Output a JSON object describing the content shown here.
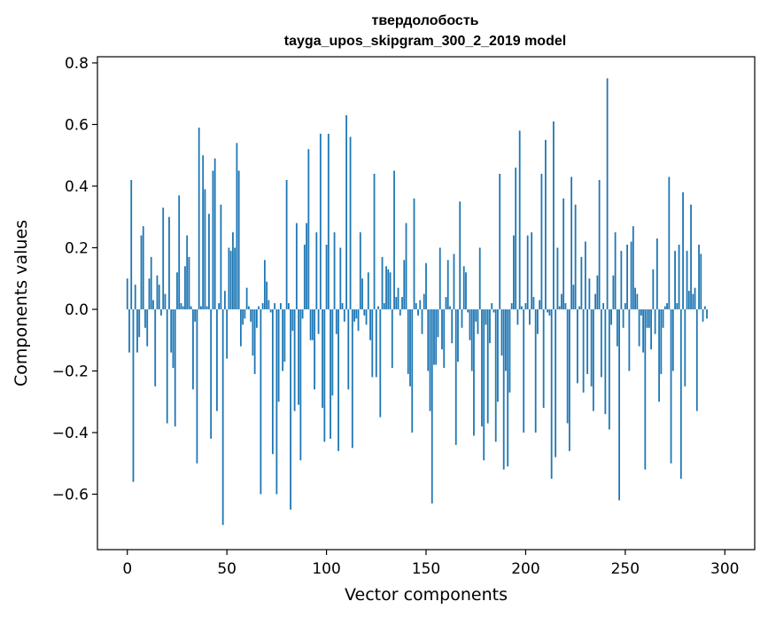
{
  "chart_data": {
    "type": "bar",
    "title_line1": "твердолобость",
    "title_line2": "tayga_upos_skipgram_300_2_2019 model",
    "xlabel": "Vector components",
    "ylabel": "Components values",
    "xlim": [
      -15,
      315
    ],
    "ylim": [
      -0.78,
      0.82
    ],
    "x_ticks": [
      0,
      50,
      100,
      150,
      200,
      250,
      300
    ],
    "x_tick_labels": [
      "0",
      "50",
      "100",
      "150",
      "200",
      "250",
      "300"
    ],
    "y_ticks": [
      -0.6,
      -0.4,
      -0.2,
      0.0,
      0.2,
      0.4,
      0.6,
      0.8
    ],
    "y_tick_labels": [
      "−0.6",
      "−0.4",
      "−0.2",
      "0.0",
      "0.2",
      "0.4",
      "0.6",
      "0.8"
    ],
    "bar_color": "#1f77b4",
    "values": [
      0.1,
      -0.14,
      0.42,
      -0.56,
      0.08,
      -0.14,
      -0.09,
      0.24,
      0.27,
      -0.06,
      -0.12,
      0.1,
      0.17,
      0.03,
      -0.25,
      0.11,
      0.08,
      -0.02,
      0.33,
      0.05,
      -0.37,
      0.3,
      -0.14,
      -0.19,
      -0.38,
      0.12,
      0.37,
      0.02,
      0.01,
      0.14,
      0.24,
      0.17,
      0.01,
      -0.26,
      -0.04,
      -0.5,
      0.59,
      0.01,
      0.5,
      0.39,
      0.01,
      0.31,
      -0.42,
      0.45,
      0.49,
      -0.33,
      0.02,
      0.34,
      -0.7,
      0.06,
      -0.16,
      0.2,
      0.19,
      0.25,
      0.2,
      0.54,
      0.45,
      -0.12,
      -0.05,
      -0.03,
      0.07,
      0.01,
      -0.04,
      -0.15,
      -0.21,
      -0.06,
      0.01,
      -0.6,
      0.02,
      0.16,
      0.09,
      0.03,
      -0.01,
      -0.47,
      0.02,
      -0.6,
      -0.3,
      0.02,
      -0.2,
      -0.17,
      0.42,
      0.02,
      -0.65,
      -0.07,
      -0.33,
      0.28,
      -0.31,
      -0.49,
      -0.03,
      0.21,
      0.28,
      0.52,
      -0.1,
      -0.1,
      -0.26,
      0.25,
      -0.08,
      0.57,
      -0.32,
      -0.43,
      0.21,
      0.57,
      -0.42,
      -0.28,
      0.25,
      -0.08,
      -0.46,
      0.2,
      0.02,
      -0.04,
      0.63,
      -0.26,
      0.56,
      -0.45,
      -0.04,
      -0.03,
      -0.07,
      0.25,
      0.1,
      -0.02,
      -0.05,
      0.12,
      -0.1,
      -0.22,
      0.44,
      -0.22,
      0.01,
      -0.35,
      0.17,
      0.02,
      0.14,
      0.13,
      0.12,
      -0.19,
      0.45,
      0.04,
      0.07,
      -0.02,
      0.04,
      0.16,
      0.28,
      -0.21,
      -0.25,
      -0.4,
      0.36,
      0.02,
      -0.02,
      0.03,
      -0.08,
      0.05,
      0.15,
      -0.2,
      -0.33,
      -0.63,
      -0.18,
      -0.18,
      -0.09,
      0.2,
      -0.13,
      -0.19,
      0.04,
      0.16,
      0.01,
      -0.11,
      0.18,
      -0.44,
      -0.17,
      0.35,
      -0.06,
      0.14,
      0.12,
      -0.01,
      -0.1,
      -0.2,
      -0.41,
      -0.04,
      -0.08,
      0.2,
      -0.38,
      -0.49,
      -0.05,
      -0.37,
      -0.11,
      0.02,
      -0.01,
      -0.43,
      -0.3,
      0.44,
      -0.15,
      -0.52,
      -0.2,
      -0.51,
      -0.27,
      0.02,
      0.24,
      0.46,
      -0.05,
      0.58,
      0.01,
      -0.4,
      0.02,
      0.24,
      -0.05,
      0.25,
      0.04,
      -0.4,
      -0.08,
      0.03,
      0.44,
      -0.32,
      0.55,
      -0.01,
      -0.02,
      -0.55,
      0.61,
      -0.48,
      0.2,
      0.01,
      0.05,
      0.36,
      0.02,
      -0.37,
      -0.46,
      0.43,
      0.08,
      0.34,
      -0.24,
      0.01,
      0.17,
      -0.27,
      0.22,
      -0.21,
      0.1,
      -0.25,
      -0.33,
      0.05,
      0.11,
      0.42,
      -0.22,
      0.02,
      -0.34,
      0.75,
      -0.39,
      -0.05,
      0.11,
      0.25,
      -0.12,
      -0.62,
      0.19,
      -0.06,
      0.02,
      0.21,
      -0.2,
      0.22,
      0.27,
      0.07,
      0.05,
      -0.12,
      -0.02,
      -0.14,
      -0.52,
      -0.06,
      -0.06,
      -0.13,
      0.13,
      -0.08,
      0.23,
      -0.3,
      -0.21,
      -0.06,
      0.01,
      0.02,
      0.43,
      -0.5,
      -0.2,
      0.19,
      0.02,
      0.21,
      -0.55,
      0.38,
      -0.25,
      0.19,
      0.06,
      0.34,
      0.05,
      0.07,
      -0.33,
      0.21,
      0.18,
      -0.04,
      0.01,
      -0.03
    ]
  }
}
